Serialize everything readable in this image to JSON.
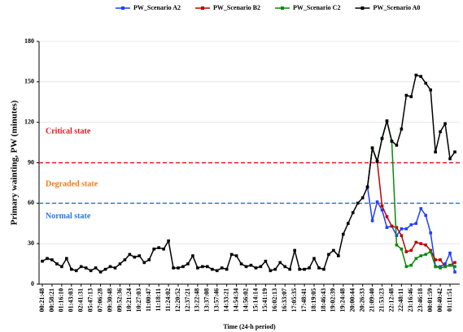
{
  "chart_data": {
    "type": "line",
    "xlabel": "Time (24-h period)",
    "ylabel": "Primary wainting, PW (minutes)",
    "ylim": [
      0,
      180
    ],
    "yticks": [
      0,
      30,
      60,
      90,
      120,
      150,
      180
    ],
    "grid": true,
    "legend": "top",
    "categories": [
      "00:21:48",
      null,
      "00:58:21",
      null,
      "01:16:10",
      null,
      "01:43:03",
      null,
      "02:41:31",
      null,
      "05:47:13",
      null,
      "07:06:28",
      null,
      "09:30:48",
      null,
      "09:52:36",
      null,
      "10:21:24",
      null,
      "10:27:03",
      null,
      "11:00:47",
      null,
      "11:18:11",
      null,
      "11:24:02",
      null,
      "12:20:52",
      null,
      "12:37:21",
      null,
      "13:22:48",
      null,
      "13:37:08",
      null,
      "13:57:46",
      null,
      "14:33:21",
      null,
      "14:54:34",
      null,
      "14:56:02",
      null,
      "15:14:14",
      null,
      "15:41:19",
      null,
      "16:02:13",
      null,
      "16:33:07",
      null,
      "17:05:35",
      null,
      "17:48:41",
      null,
      "18:19:05",
      null,
      "18:46:43",
      null,
      "19:02:39",
      null,
      "19:24:48",
      null,
      "20:00:44",
      null,
      "20:26:33",
      null,
      "21:09:40",
      null,
      "21:53:23",
      null,
      "22:12:48",
      null,
      "22:48:11",
      null,
      "23:16:46",
      null,
      "23:46:18",
      null,
      "00:01:59",
      null,
      "00:40:42",
      null,
      "01:11:51",
      null
    ],
    "thresholds": [
      {
        "value": 90,
        "color": "#e8161b",
        "label": "Critical state",
        "label_at": 113,
        "label_color": "#e8161b"
      },
      {
        "value": 60,
        "color": "#2a78e4",
        "label": "Degraded state",
        "label_at": 74,
        "label_color": "#f07c1a"
      },
      {
        "value": 60,
        "color": "#2a78e4",
        "label": "Normal state",
        "label_at": 50,
        "label_color": "#2a78e4"
      }
    ],
    "series": [
      {
        "name": "PW_Scenario A2",
        "color": "#1f3fff",
        "values": [
          null,
          null,
          null,
          null,
          null,
          null,
          null,
          null,
          null,
          null,
          null,
          null,
          null,
          null,
          null,
          null,
          null,
          null,
          null,
          null,
          null,
          null,
          null,
          null,
          null,
          null,
          null,
          null,
          null,
          null,
          null,
          null,
          null,
          null,
          null,
          null,
          null,
          null,
          null,
          null,
          null,
          null,
          null,
          null,
          null,
          null,
          null,
          null,
          null,
          null,
          null,
          null,
          null,
          null,
          null,
          null,
          null,
          null,
          null,
          null,
          null,
          null,
          null,
          null,
          null,
          null,
          null,
          72,
          47,
          61,
          55,
          42,
          43,
          36,
          41,
          41,
          44,
          45,
          56,
          51,
          38,
          13,
          13,
          15,
          23,
          9
        ]
      },
      {
        "name": "PW_Scenario B2",
        "color": "#c00000",
        "values": [
          null,
          null,
          null,
          null,
          null,
          null,
          null,
          null,
          null,
          null,
          null,
          null,
          null,
          null,
          null,
          null,
          null,
          null,
          null,
          null,
          null,
          null,
          null,
          null,
          null,
          null,
          null,
          null,
          null,
          null,
          null,
          null,
          null,
          null,
          null,
          null,
          null,
          null,
          null,
          null,
          null,
          null,
          null,
          null,
          null,
          null,
          null,
          null,
          null,
          null,
          null,
          null,
          null,
          null,
          null,
          null,
          null,
          null,
          null,
          null,
          null,
          null,
          null,
          null,
          null,
          null,
          null,
          72,
          101,
          91,
          58,
          50,
          43,
          42,
          36,
          24,
          25,
          31,
          30,
          29,
          25,
          18,
          18,
          13,
          14,
          16
        ]
      },
      {
        "name": "PW_Scenario C2",
        "color": "#0a8a0a",
        "values": [
          null,
          null,
          null,
          null,
          null,
          null,
          null,
          null,
          null,
          null,
          null,
          null,
          null,
          null,
          null,
          null,
          null,
          null,
          null,
          null,
          null,
          null,
          null,
          null,
          null,
          null,
          null,
          null,
          null,
          null,
          null,
          null,
          null,
          null,
          null,
          null,
          null,
          null,
          null,
          null,
          null,
          null,
          null,
          null,
          null,
          null,
          null,
          null,
          null,
          null,
          null,
          null,
          null,
          null,
          null,
          null,
          null,
          null,
          null,
          null,
          null,
          null,
          null,
          null,
          null,
          null,
          null,
          72,
          101,
          91,
          108,
          121,
          106,
          29,
          26,
          13,
          14,
          19,
          21,
          22,
          24,
          13,
          12,
          13,
          14,
          13
        ]
      },
      {
        "name": "PW_Scenario A0",
        "color": "#000000",
        "values": [
          17,
          19,
          18,
          15,
          13,
          19,
          11,
          10,
          13,
          12,
          10,
          12,
          9,
          11,
          13,
          12,
          15,
          18,
          22,
          20,
          21,
          16,
          18,
          26,
          27,
          26,
          32,
          12,
          12,
          13,
          15,
          21,
          12,
          13,
          13,
          11,
          10,
          12,
          11,
          22,
          21,
          15,
          13,
          14,
          12,
          13,
          17,
          10,
          11,
          16,
          13,
          11,
          25,
          11,
          11,
          12,
          19,
          12,
          11,
          22,
          25,
          21,
          37,
          45,
          53,
          60,
          64,
          72,
          101,
          91,
          108,
          121,
          106,
          103,
          115,
          140,
          139,
          155,
          154,
          149,
          144,
          98,
          113,
          119,
          93,
          98
        ]
      }
    ]
  }
}
